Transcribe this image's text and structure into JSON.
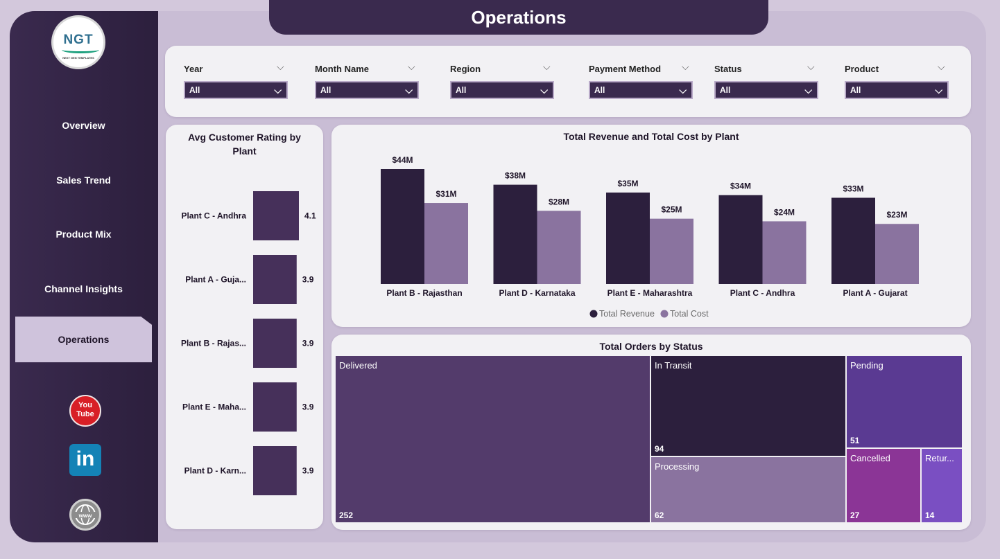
{
  "header": {
    "title": "Operations"
  },
  "logo": {
    "text": "NGT",
    "subtitle": "NEXT GEN TEMPLATES"
  },
  "sidebar": {
    "items": [
      {
        "label": "Overview"
      },
      {
        "label": "Sales Trend"
      },
      {
        "label": "Product Mix"
      },
      {
        "label": "Channel Insights"
      },
      {
        "label": "Operations",
        "active": true
      }
    ],
    "social": [
      {
        "icon": "youtube-icon",
        "text": "You Tube"
      },
      {
        "icon": "linkedin-icon",
        "text": "in"
      },
      {
        "icon": "globe-www-icon",
        "text": "www"
      }
    ]
  },
  "filters": [
    {
      "label": "Year",
      "value": "All"
    },
    {
      "label": "Month Name",
      "value": "All"
    },
    {
      "label": "Region",
      "value": "All"
    },
    {
      "label": "Payment Method",
      "value": "All"
    },
    {
      "label": "Status",
      "value": "All"
    },
    {
      "label": "Product",
      "value": "All"
    }
  ],
  "chart_data": [
    {
      "type": "bar",
      "orientation": "horizontal",
      "title": "Avg Customer Rating by Plant",
      "categories": [
        "Plant C - Andhra",
        "Plant A - Guja...",
        "Plant B - Rajas...",
        "Plant E - Maha...",
        "Plant D - Karn..."
      ],
      "values": [
        4.1,
        3.9,
        3.9,
        3.9,
        3.9
      ],
      "labels": [
        "4.1",
        "3.9",
        "3.9",
        "3.9",
        "3.9"
      ],
      "color": "#46305a"
    },
    {
      "type": "bar",
      "title": "Total Revenue and Total Cost by Plant",
      "categories": [
        "Plant B - Rajasthan",
        "Plant D - Karnataka",
        "Plant E - Maharashtra",
        "Plant C - Andhra",
        "Plant A - Gujarat"
      ],
      "series": [
        {
          "name": "Total Revenue",
          "color": "#2c1f3d",
          "values": [
            44,
            38,
            35,
            34,
            33
          ],
          "labels": [
            "$44M",
            "$38M",
            "$35M",
            "$34M",
            "$33M"
          ]
        },
        {
          "name": "Total Cost",
          "color": "#8a739f",
          "values": [
            31,
            28,
            25,
            24,
            23
          ],
          "labels": [
            "$31M",
            "$28M",
            "$25M",
            "$24M",
            "$23M"
          ]
        }
      ],
      "legend": "bottom-center",
      "ylim": [
        0,
        44
      ]
    },
    {
      "type": "treemap",
      "title": "Total Orders by Status",
      "items": [
        {
          "label": "Delivered",
          "value": 252,
          "color": "#533b6b"
        },
        {
          "label": "In Transit",
          "value": 94,
          "color": "#2c1f3d"
        },
        {
          "label": "Processing",
          "value": 62,
          "color": "#8a739f"
        },
        {
          "label": "Pending",
          "value": 51,
          "color": "#5a3a92"
        },
        {
          "label": "Cancelled",
          "value": 27,
          "color": "#8b3596"
        },
        {
          "label": "Retur...",
          "value": 14,
          "color": "#7a4fc2"
        }
      ]
    }
  ]
}
